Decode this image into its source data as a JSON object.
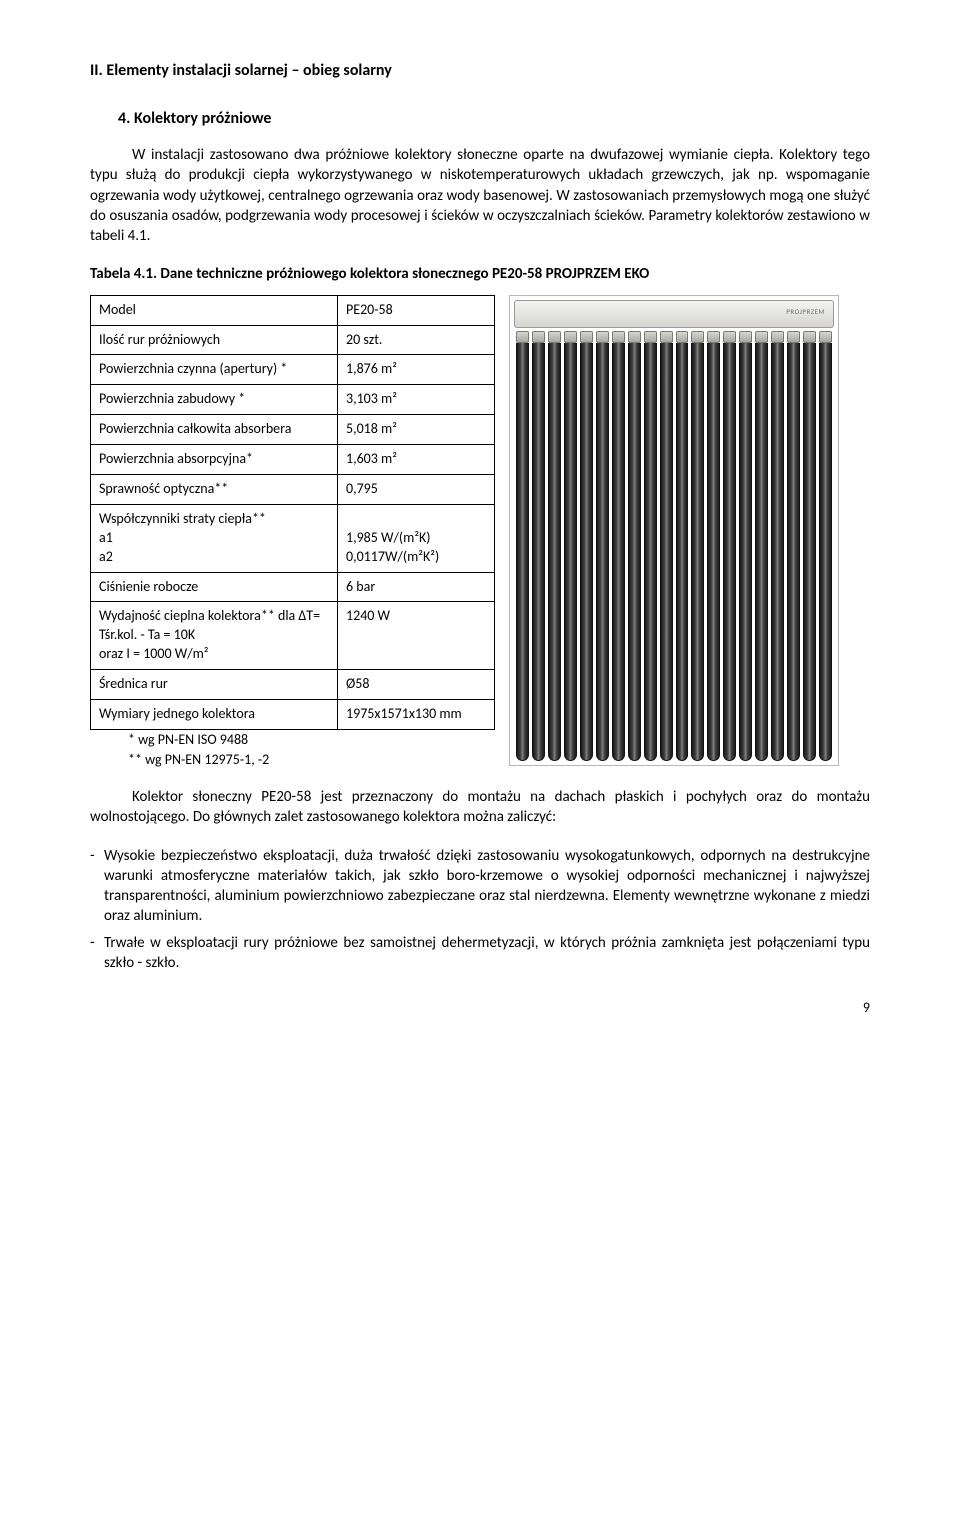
{
  "sectionTitle": "II.  Elementy instalacji solarnej – obieg solarny",
  "subTitle": "4.   Kolektory próżniowe",
  "intro": "W instalacji zastosowano dwa próżniowe kolektory słoneczne oparte na dwufazowej wymianie ciepła. Kolektory tego typu służą do produkcji ciepła wykorzystywanego w niskotemperaturowych układach grzewczych, jak np. wspomaganie ogrzewania wody użytkowej, centralnego ogrzewania oraz wody basenowej. W zastosowaniach przemysłowych mogą one służyć do osuszania osadów, podgrzewania wody procesowej i ścieków w oczyszczalniach ścieków. Parametry kolektorów zestawiono w tabeli 4.1.",
  "tableTitle": "Tabela 4.1. Dane techniczne próżniowego kolektora słonecznego PE20-58 PROJPRZEM EKO",
  "rows": [
    {
      "l": "Model",
      "v": "PE20-58"
    },
    {
      "l": "Ilość rur próżniowych",
      "v": "20 szt."
    },
    {
      "l": "Powierzchnia czynna (apertury) *",
      "v": "1,876 m²"
    },
    {
      "l": "Powierzchnia zabudowy *",
      "v": "3,103 m²"
    },
    {
      "l": "Powierzchnia całkowita absorbera",
      "v": "5,018 m²"
    },
    {
      "l": "Powierzchnia absorpcyjna*",
      "v": "1,603 m²"
    },
    {
      "l": "Sprawność optyczna**",
      "v": "0,795"
    },
    {
      "l": "Współczynniki straty ciepła**\na1\na2",
      "v": "\n1,985   W/(m²K)\n0,0117W/(m²K²)"
    },
    {
      "l": "Ciśnienie robocze",
      "v": "6 bar"
    },
    {
      "l": "Wydajność cieplna kolektora** dla ΔT= Tśr.kol. - Ta = 10K\noraz I = 1000 W/m²",
      "v": "1240 W"
    },
    {
      "l": "Średnica rur",
      "v": "Ø58"
    },
    {
      "l": "Wymiary jednego kolektora",
      "v": "1975x1571x130 mm"
    }
  ],
  "note1": "*   wg PN-EN ISO 9488",
  "note2": "**  wg PN-EN 12975-1, -2",
  "collectorBrand": "PROJPRZEM",
  "tubeCount": 20,
  "para2": "Kolektor słoneczny PE20-58 jest przeznaczony do montażu na dachach płaskich i pochyłych oraz do montażu wolnostojącego. Do głównych zalet zastosowanego kolektora można zaliczyć:",
  "bullets": [
    "Wysokie bezpieczeństwo eksploatacji, duża trwałość dzięki zastosowaniu wysokogatunkowych, odpornych na destrukcyjne warunki atmosferyczne materiałów takich, jak szkło boro-krzemowe o wysokiej odporności mechanicznej i najwyższej transparentności, aluminium powierzchniowo zabezpieczane oraz stal nierdzewna. Elementy wewnętrzne wykonane z miedzi oraz aluminium.",
    "Trwałe w eksploatacji rury próżniowe bez samoistnej dehermetyzacji, w których próżnia zamknięta jest połączeniami typu szkło - szkło."
  ],
  "pageNumber": "9"
}
